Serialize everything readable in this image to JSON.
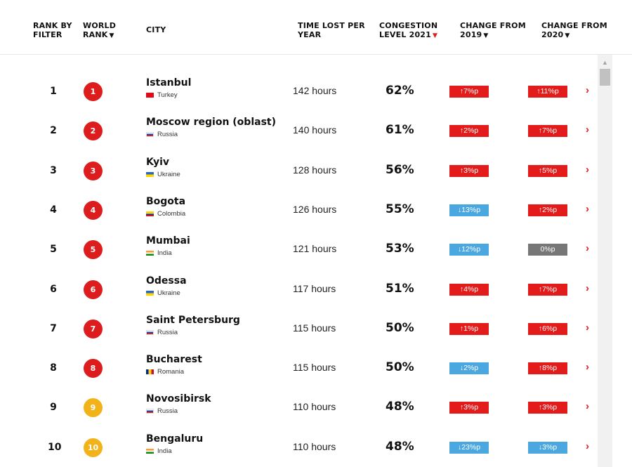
{
  "headers": {
    "rank_by_filter": [
      "RANK BY",
      "FILTER"
    ],
    "world_rank": [
      "WORLD",
      "RANK"
    ],
    "city": "CITY",
    "time_lost": [
      "TIME LOST PER",
      "YEAR"
    ],
    "congestion": [
      "CONGESTION",
      "LEVEL 2021"
    ],
    "change_2019": [
      "CHANGE FROM",
      "2019"
    ],
    "change_2020": [
      "CHANGE FROM",
      "2020"
    ],
    "sort_glyph": "▼"
  },
  "colors": {
    "accent_red": "#e31b1b",
    "badge_red": "#dd1d1d",
    "badge_gold": "#f2b21a",
    "down_blue": "#4ba7e0",
    "neutral_grey": "#777777"
  },
  "rows": [
    {
      "rank": "1",
      "world_rank": "1",
      "badge": "red",
      "city": "Istanbul",
      "country": "Turkey",
      "flag": "tr",
      "time": "142 hours",
      "congestion": "62%",
      "c19": {
        "dir": "up",
        "label": "↑7%p"
      },
      "c20": {
        "dir": "up",
        "label": "↑11%p"
      }
    },
    {
      "rank": "2",
      "world_rank": "2",
      "badge": "red",
      "city": "Moscow region (oblast)",
      "country": "Russia",
      "flag": "ru",
      "time": "140 hours",
      "congestion": "61%",
      "c19": {
        "dir": "up",
        "label": "↑2%p"
      },
      "c20": {
        "dir": "up",
        "label": "↑7%p"
      }
    },
    {
      "rank": "3",
      "world_rank": "3",
      "badge": "red",
      "city": "Kyiv",
      "country": "Ukraine",
      "flag": "ua",
      "time": "128 hours",
      "congestion": "56%",
      "c19": {
        "dir": "up",
        "label": "↑3%p"
      },
      "c20": {
        "dir": "up",
        "label": "↑5%p"
      }
    },
    {
      "rank": "4",
      "world_rank": "4",
      "badge": "red",
      "city": "Bogota",
      "country": "Colombia",
      "flag": "co",
      "time": "126 hours",
      "congestion": "55%",
      "c19": {
        "dir": "down",
        "label": "↓13%p"
      },
      "c20": {
        "dir": "up",
        "label": "↑2%p"
      }
    },
    {
      "rank": "5",
      "world_rank": "5",
      "badge": "red",
      "city": "Mumbai",
      "country": "India",
      "flag": "in",
      "time": "121 hours",
      "congestion": "53%",
      "c19": {
        "dir": "down",
        "label": "↓12%p"
      },
      "c20": {
        "dir": "zero",
        "label": "0%p"
      }
    },
    {
      "rank": "6",
      "world_rank": "6",
      "badge": "red",
      "city": "Odessa",
      "country": "Ukraine",
      "flag": "ua",
      "time": "117 hours",
      "congestion": "51%",
      "c19": {
        "dir": "up",
        "label": "↑4%p"
      },
      "c20": {
        "dir": "up",
        "label": "↑7%p"
      }
    },
    {
      "rank": "7",
      "world_rank": "7",
      "badge": "red",
      "city": "Saint Petersburg",
      "country": "Russia",
      "flag": "ru",
      "time": "115 hours",
      "congestion": "50%",
      "c19": {
        "dir": "up",
        "label": "↑1%p"
      },
      "c20": {
        "dir": "up",
        "label": "↑6%p"
      }
    },
    {
      "rank": "8",
      "world_rank": "8",
      "badge": "red",
      "city": "Bucharest",
      "country": "Romania",
      "flag": "ro",
      "time": "115 hours",
      "congestion": "50%",
      "c19": {
        "dir": "down",
        "label": "↓2%p"
      },
      "c20": {
        "dir": "up",
        "label": "↑8%p"
      }
    },
    {
      "rank": "9",
      "world_rank": "9",
      "badge": "gold",
      "city": "Novosibirsk",
      "country": "Russia",
      "flag": "ru",
      "time": "110 hours",
      "congestion": "48%",
      "c19": {
        "dir": "up",
        "label": "↑3%p"
      },
      "c20": {
        "dir": "up",
        "label": "↑3%p"
      }
    },
    {
      "rank": "10",
      "world_rank": "10",
      "badge": "gold",
      "city": "Bengaluru",
      "country": "India",
      "flag": "in",
      "time": "110 hours",
      "congestion": "48%",
      "c19": {
        "dir": "down",
        "label": "↓23%p"
      },
      "c20": {
        "dir": "down",
        "label": "↓3%p"
      }
    }
  ],
  "row_arrow_glyph": "›",
  "scroll_up_glyph": "▲"
}
